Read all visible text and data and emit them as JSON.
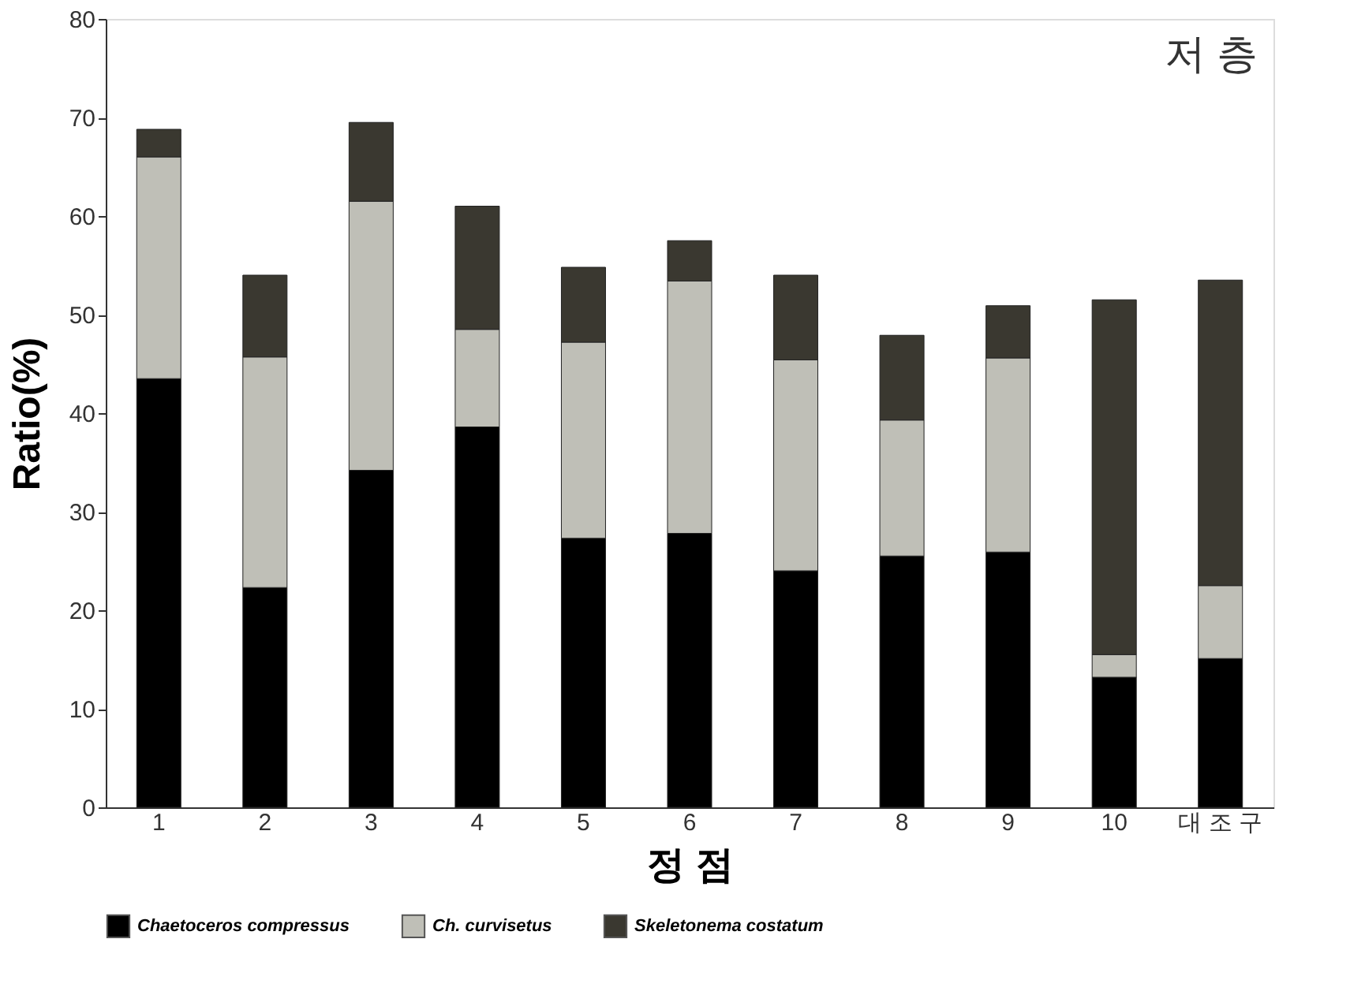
{
  "chart_data": {
    "type": "bar",
    "stacked": true,
    "xlabel": "정 점",
    "ylabel": "Ratio(%)",
    "annotations": [
      "저 층"
    ],
    "categories": [
      "1",
      "2",
      "3",
      "4",
      "5",
      "6",
      "7",
      "8",
      "9",
      "10",
      "대 조 구"
    ],
    "series": [
      {
        "name": "Chaetoceros compressus",
        "color": "#000000",
        "values": [
          43.5,
          22.3,
          34.2,
          38.6,
          27.3,
          27.8,
          24.0,
          25.5,
          25.9,
          13.2,
          15.1
        ]
      },
      {
        "name": "Ch. curvisetus",
        "color": "#bfbfb7",
        "values": [
          22.5,
          23.4,
          27.3,
          9.9,
          19.9,
          25.6,
          21.4,
          13.8,
          19.7,
          2.3,
          7.4
        ]
      },
      {
        "name": "Skeletonema costatum",
        "color": "#3a3830",
        "values": [
          2.8,
          8.3,
          8.0,
          12.5,
          7.6,
          4.1,
          8.6,
          8.6,
          5.3,
          36.0,
          31.0
        ]
      }
    ],
    "ylim": [
      0,
      80
    ],
    "yticks": [
      0,
      10,
      20,
      30,
      40,
      50,
      60,
      70,
      80
    ],
    "grid": false,
    "legend": "bottom"
  }
}
